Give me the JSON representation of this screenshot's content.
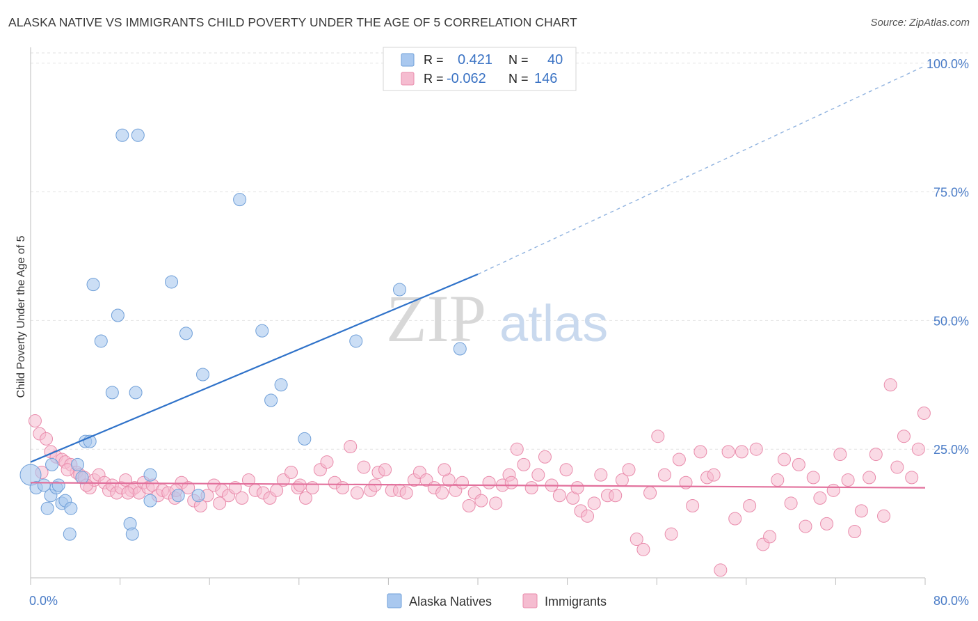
{
  "header": {
    "title": "ALASKA NATIVE VS IMMIGRANTS CHILD POVERTY UNDER THE AGE OF 5 CORRELATION CHART",
    "source": "Source: ZipAtlas.com"
  },
  "watermark": {
    "zip": "ZIP",
    "atlas": "atlas"
  },
  "colors": {
    "blue_fill": "#a9c8ef",
    "blue_stroke": "#6f9fd8",
    "blue_line": "#2f72c9",
    "pink_fill": "#f5bcd0",
    "pink_stroke": "#e98bab",
    "pink_line": "#e2709c",
    "axis_label": "#4a7cc7",
    "grid": "#dedede"
  },
  "chart_data": {
    "type": "scatter",
    "title": "ALASKA NATIVE VS IMMIGRANTS CHILD POVERTY UNDER THE AGE OF 5 CORRELATION CHART",
    "xlabel": "",
    "ylabel": "Child Poverty Under the Age of 5",
    "xlim": [
      0,
      80
    ],
    "ylim": [
      0,
      102
    ],
    "x_tick_labels": [
      "0.0%",
      "80.0%"
    ],
    "y_tick_labels": [
      "25.0%",
      "50.0%",
      "75.0%",
      "100.0%"
    ],
    "y_ticks": [
      25,
      50,
      75,
      100
    ],
    "grid": "horizontal dashed",
    "legend_position": "top-center",
    "stats": [
      {
        "r_label": "R =",
        "r": "0.421",
        "n_label": "N =",
        "n": "40"
      },
      {
        "r_label": "R =",
        "r": "-0.062",
        "n_label": "N =",
        "n": "146"
      }
    ],
    "series": [
      {
        "name": "Alaska Natives",
        "color": "#a9c8ef",
        "trend": {
          "x0": 0,
          "y0": 22.5,
          "x1": 40,
          "y1": 59,
          "dashed_to_x": 80,
          "dashed_to_y": 99.5
        },
        "points": [
          [
            0.0,
            20.0
          ],
          [
            0.5,
            17.5
          ],
          [
            1.2,
            18.0
          ],
          [
            1.5,
            13.5
          ],
          [
            1.8,
            16.0
          ],
          [
            1.9,
            22.0
          ],
          [
            2.3,
            17.5
          ],
          [
            2.5,
            18.0
          ],
          [
            2.8,
            14.5
          ],
          [
            3.1,
            15.0
          ],
          [
            3.6,
            13.5
          ],
          [
            3.5,
            8.5
          ],
          [
            4.2,
            22.0
          ],
          [
            4.6,
            19.5
          ],
          [
            4.9,
            26.5
          ],
          [
            5.3,
            26.5
          ],
          [
            5.6,
            57.0
          ],
          [
            6.3,
            46.0
          ],
          [
            7.3,
            36.0
          ],
          [
            7.8,
            51.0
          ],
          [
            8.2,
            86.0
          ],
          [
            8.9,
            10.5
          ],
          [
            9.1,
            8.5
          ],
          [
            9.4,
            36.0
          ],
          [
            9.6,
            86.0
          ],
          [
            10.7,
            15.0
          ],
          [
            10.7,
            20.0
          ],
          [
            12.6,
            57.5
          ],
          [
            13.2,
            16.0
          ],
          [
            13.9,
            47.5
          ],
          [
            15.0,
            16.0
          ],
          [
            15.4,
            39.5
          ],
          [
            18.7,
            73.5
          ],
          [
            20.7,
            48.0
          ],
          [
            21.5,
            34.5
          ],
          [
            22.4,
            37.5
          ],
          [
            24.5,
            27.0
          ],
          [
            29.1,
            46.0
          ],
          [
            33.0,
            56.0
          ],
          [
            38.4,
            44.5
          ]
        ]
      },
      {
        "name": "Immigrants",
        "color": "#f5bcd0",
        "trend": {
          "x0": 0,
          "y0": 18.5,
          "x1": 80,
          "y1": 17.5
        },
        "points": [
          [
            0.4,
            30.5
          ],
          [
            0.8,
            28.0
          ],
          [
            1.4,
            27.0
          ],
          [
            1.8,
            24.5
          ],
          [
            2.3,
            23.5
          ],
          [
            2.8,
            23.0
          ],
          [
            3.1,
            22.5
          ],
          [
            3.6,
            22.0
          ],
          [
            4.1,
            20.5
          ],
          [
            4.4,
            20.0
          ],
          [
            4.8,
            19.5
          ],
          [
            5.3,
            17.5
          ],
          [
            5.7,
            19.0
          ],
          [
            6.1,
            20.0
          ],
          [
            6.6,
            18.5
          ],
          [
            7.0,
            17.0
          ],
          [
            7.3,
            18.0
          ],
          [
            7.7,
            16.5
          ],
          [
            8.1,
            17.5
          ],
          [
            8.5,
            19.0
          ],
          [
            9.0,
            17.0
          ],
          [
            9.3,
            17.5
          ],
          [
            9.7,
            16.5
          ],
          [
            10.1,
            18.5
          ],
          [
            10.5,
            17.5
          ],
          [
            10.9,
            18.0
          ],
          [
            11.4,
            16.0
          ],
          [
            11.8,
            17.0
          ],
          [
            12.3,
            16.5
          ],
          [
            12.9,
            15.5
          ],
          [
            13.5,
            18.5
          ],
          [
            14.1,
            17.5
          ],
          [
            14.6,
            15.0
          ],
          [
            15.2,
            14.0
          ],
          [
            15.8,
            16.0
          ],
          [
            16.4,
            18.0
          ],
          [
            17.1,
            17.0
          ],
          [
            17.7,
            16.0
          ],
          [
            18.3,
            17.5
          ],
          [
            18.9,
            15.5
          ],
          [
            19.5,
            19.0
          ],
          [
            20.1,
            17.0
          ],
          [
            20.8,
            16.5
          ],
          [
            21.4,
            15.5
          ],
          [
            22.0,
            17.0
          ],
          [
            22.6,
            19.0
          ],
          [
            23.3,
            20.5
          ],
          [
            23.9,
            17.5
          ],
          [
            24.6,
            15.5
          ],
          [
            25.2,
            17.5
          ],
          [
            25.9,
            21.0
          ],
          [
            26.5,
            22.5
          ],
          [
            27.2,
            18.5
          ],
          [
            27.9,
            17.5
          ],
          [
            28.6,
            25.5
          ],
          [
            29.2,
            16.5
          ],
          [
            29.8,
            21.5
          ],
          [
            30.4,
            17.0
          ],
          [
            31.1,
            20.5
          ],
          [
            31.7,
            21.0
          ],
          [
            32.3,
            17.0
          ],
          [
            33.0,
            17.0
          ],
          [
            33.6,
            16.5
          ],
          [
            34.3,
            19.0
          ],
          [
            34.8,
            20.5
          ],
          [
            35.4,
            19.0
          ],
          [
            36.1,
            17.5
          ],
          [
            36.8,
            16.5
          ],
          [
            37.4,
            19.0
          ],
          [
            38.0,
            17.0
          ],
          [
            38.6,
            18.5
          ],
          [
            39.2,
            14.0
          ],
          [
            39.7,
            16.5
          ],
          [
            40.3,
            15.0
          ],
          [
            41.0,
            18.5
          ],
          [
            41.6,
            14.5
          ],
          [
            42.2,
            18.0
          ],
          [
            42.8,
            20.0
          ],
          [
            43.5,
            25.0
          ],
          [
            44.1,
            22.0
          ],
          [
            44.8,
            17.5
          ],
          [
            45.4,
            20.0
          ],
          [
            46.0,
            23.5
          ],
          [
            46.6,
            18.0
          ],
          [
            47.3,
            16.0
          ],
          [
            47.9,
            21.0
          ],
          [
            48.5,
            15.5
          ],
          [
            49.2,
            13.0
          ],
          [
            49.8,
            12.0
          ],
          [
            50.4,
            14.5
          ],
          [
            51.0,
            20.0
          ],
          [
            51.6,
            16.0
          ],
          [
            52.3,
            16.0
          ],
          [
            52.9,
            19.0
          ],
          [
            53.5,
            21.0
          ],
          [
            54.2,
            7.5
          ],
          [
            54.8,
            5.5
          ],
          [
            55.4,
            16.5
          ],
          [
            56.1,
            27.5
          ],
          [
            56.7,
            20.0
          ],
          [
            57.3,
            8.5
          ],
          [
            58.0,
            23.0
          ],
          [
            58.6,
            18.5
          ],
          [
            59.2,
            14.0
          ],
          [
            59.9,
            24.5
          ],
          [
            60.5,
            19.5
          ],
          [
            61.1,
            20.0
          ],
          [
            61.7,
            1.5
          ],
          [
            62.4,
            24.5
          ],
          [
            63.0,
            11.5
          ],
          [
            63.6,
            24.5
          ],
          [
            64.3,
            14.0
          ],
          [
            64.9,
            25.0
          ],
          [
            65.5,
            6.5
          ],
          [
            66.1,
            8.0
          ],
          [
            66.8,
            19.0
          ],
          [
            67.4,
            23.0
          ],
          [
            68.0,
            14.5
          ],
          [
            68.7,
            22.0
          ],
          [
            69.3,
            10.0
          ],
          [
            70.0,
            19.5
          ],
          [
            70.6,
            15.5
          ],
          [
            71.2,
            10.5
          ],
          [
            71.8,
            17.0
          ],
          [
            72.4,
            24.0
          ],
          [
            73.1,
            19.0
          ],
          [
            73.7,
            9.0
          ],
          [
            74.3,
            13.0
          ],
          [
            75.0,
            19.5
          ],
          [
            75.6,
            24.0
          ],
          [
            76.3,
            12.0
          ],
          [
            76.9,
            37.5
          ],
          [
            77.5,
            21.5
          ],
          [
            78.1,
            27.5
          ],
          [
            78.8,
            19.5
          ],
          [
            79.4,
            25.0
          ],
          [
            79.9,
            32.0
          ],
          [
            1.0,
            20.5
          ],
          [
            3.3,
            21.0
          ],
          [
            5.0,
            18.0
          ],
          [
            8.7,
            16.5
          ],
          [
            13.0,
            17.0
          ],
          [
            16.9,
            14.5
          ],
          [
            24.1,
            18.0
          ],
          [
            30.8,
            18.0
          ],
          [
            37.0,
            21.0
          ],
          [
            43.0,
            18.5
          ],
          [
            48.9,
            17.5
          ]
        ]
      }
    ]
  }
}
